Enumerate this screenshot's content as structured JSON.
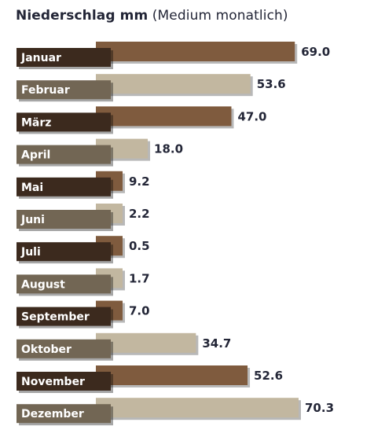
{
  "chart_data": {
    "type": "bar",
    "orientation": "horizontal",
    "title_lead": "Niederschlag mm",
    "title_rest": "(Medium monatlich)",
    "categories": [
      "Januar",
      "Februar",
      "März",
      "April",
      "Mai",
      "Juni",
      "Juli",
      "August",
      "September",
      "Oktober",
      "November",
      "Dezember"
    ],
    "values": [
      69.0,
      53.6,
      47.0,
      18.0,
      9.2,
      2.2,
      0.5,
      1.7,
      7.0,
      34.7,
      52.6,
      70.3
    ],
    "value_labels": [
      "69.0",
      "53.6",
      "47.0",
      "18.0",
      "9.2",
      "2.2",
      "0.5",
      "1.7",
      "7.0",
      "34.7",
      "52.6",
      "70.3"
    ],
    "colors": {
      "bar_odd": "#7f5b3e",
      "bar_even": "#c2b7a0",
      "label_odd": "#3c2a1e",
      "label_even": "#726654",
      "text": "#232637"
    }
  }
}
